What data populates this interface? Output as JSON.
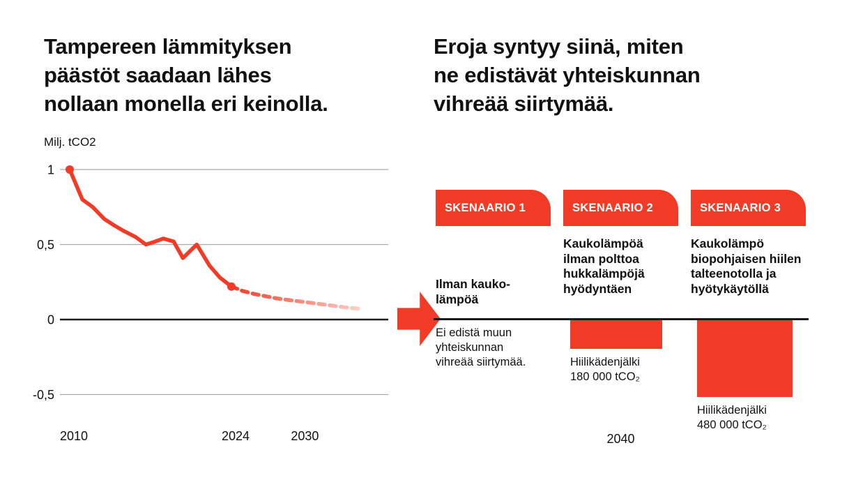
{
  "page": {
    "background": "#ffffff",
    "accent_red": "#F23B26",
    "accent_red_fade": "#FBD3CB",
    "text_color": "#111111",
    "grid_color": "#A9A9A9",
    "zero_line_color": "#1A1A1A"
  },
  "left_panel": {
    "title": "Tampereen lämmityksen\npäästöt saadaan lähes\nnollaan monella eri keinolla."
  },
  "right_panel": {
    "title": "Eroja syntyy siinä, miten\nne edistävät yhteiskunnan\nvihreää siirtymää.",
    "scenarios": [
      {
        "badge": "SKENAARIO 1",
        "description": "Ilman kauko-\nlämpöä",
        "note": "Ei edistä muun\nyhteiskunnan\nvihreää siirtymää."
      },
      {
        "badge": "SKENAARIO 2",
        "description": "Kaukolämpöä\nilman polttoa\nhukkalämpöjä\nhyödyntäen"
      },
      {
        "badge": "SKENAARIO 3",
        "description": "Kaukolämpö\nbiopohjaisen hiilen\ntalteenotolla ja\nhyötykäytöllä"
      }
    ]
  },
  "chart_data": [
    {
      "type": "line",
      "title": "Tampereen lämmityksen päästöt saadaan lähes nollaan monella eri keinolla.",
      "ylabel": "Milj. tCO2",
      "xlabel": "",
      "ylim": [
        -0.7,
        1.1
      ],
      "xlim": [
        2009,
        2036
      ],
      "yticks": [
        1,
        0.5,
        0,
        -0.5
      ],
      "ytick_labels": [
        "1",
        "0,5",
        "0",
        "-0,5"
      ],
      "xticks": [
        2010,
        2024,
        2030
      ],
      "grid": true,
      "legend": false,
      "series": [
        {
          "name": "emissions-actual",
          "style": "solid",
          "color": "#F23B26",
          "points": [
            [
              2010,
              1.0
            ],
            [
              2011.1,
              0.8
            ],
            [
              2012,
              0.75
            ],
            [
              2013,
              0.67
            ],
            [
              2013.8,
              0.63
            ],
            [
              2014.7,
              0.59
            ],
            [
              2015.7,
              0.55
            ],
            [
              2016.6,
              0.5
            ],
            [
              2017.4,
              0.52
            ],
            [
              2018.1,
              0.54
            ],
            [
              2019,
              0.52
            ],
            [
              2019.8,
              0.41
            ],
            [
              2021,
              0.5
            ],
            [
              2022.1,
              0.36
            ],
            [
              2023,
              0.28
            ],
            [
              2024,
              0.22
            ]
          ]
        },
        {
          "name": "emissions-forecast",
          "style": "dashed-fading",
          "color": "#F23B26",
          "points": [
            [
              2024,
              0.22
            ],
            [
              2025,
              0.19
            ],
            [
              2026,
              0.17
            ],
            [
              2027,
              0.155
            ],
            [
              2028,
              0.14
            ],
            [
              2029,
              0.13
            ],
            [
              2030,
              0.12
            ],
            [
              2031,
              0.11
            ],
            [
              2032,
              0.1
            ],
            [
              2033,
              0.09
            ],
            [
              2034,
              0.08
            ],
            [
              2035.3,
              0.07
            ]
          ]
        }
      ],
      "markers": [
        [
          2010,
          1.0
        ],
        [
          2024,
          0.22
        ]
      ]
    },
    {
      "type": "bar",
      "categories": [
        "SKENAARIO 2",
        "SKENAARIO 3"
      ],
      "values": [
        180000,
        480000
      ],
      "bar_labels": [
        "Hiilikädenjälki\n180 000 tCO₂",
        "Hiilikädenjälki\n480 000 tCO₂"
      ],
      "unit": "tCO₂",
      "xlabel": "2040",
      "baseline_value": 0,
      "direction": "down-from-baseline"
    }
  ]
}
